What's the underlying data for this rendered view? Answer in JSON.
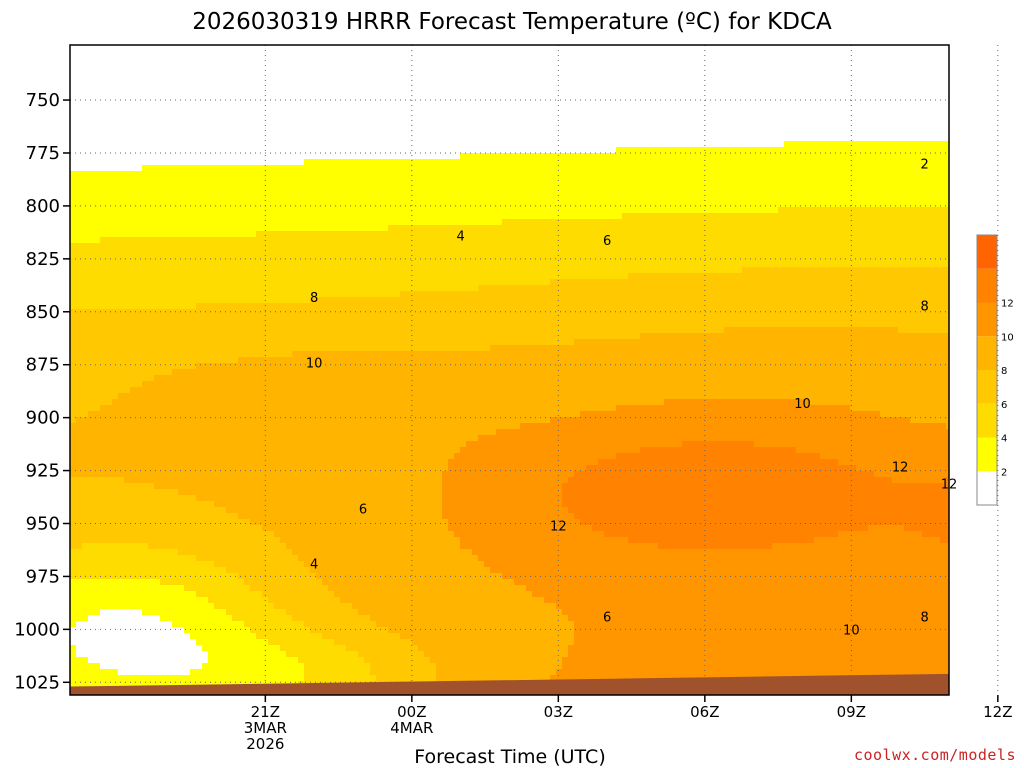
{
  "chart_data": {
    "type": "heatmap",
    "title": "2026030319 HRRR Forecast Temperature (ºC) for KDCA",
    "xlabel": "Forecast Time (UTC)",
    "ylabel": "",
    "x_range_hours": [
      -4,
      14
    ],
    "y_range_hpa": [
      1031,
      724
    ],
    "y_scale": "inverted pressure",
    "x_ticks": [
      {
        "hour": 0,
        "line1": "21Z",
        "line2": "3MAR",
        "line3": "2026"
      },
      {
        "hour": 3,
        "line1": "00Z",
        "line2": "4MAR",
        "line3": ""
      },
      {
        "hour": 6,
        "line1": "03Z",
        "line2": "",
        "line3": ""
      },
      {
        "hour": 9,
        "line1": "06Z",
        "line2": "",
        "line3": ""
      },
      {
        "hour": 12,
        "line1": "09Z",
        "line2": "",
        "line3": ""
      },
      {
        "hour": 15,
        "line1": "12Z",
        "line2": "",
        "line3": ""
      }
    ],
    "y_ticks": [
      "750",
      "775",
      "800",
      "825",
      "850",
      "875",
      "900",
      "925",
      "950",
      "975",
      "1000",
      "1025"
    ],
    "y_tick_values": [
      750,
      775,
      800,
      825,
      850,
      875,
      900,
      925,
      950,
      975,
      1000,
      1025
    ],
    "grid": true,
    "legend": {
      "placement": "right",
      "labels": [
        "2",
        "4",
        "6",
        "8",
        "10",
        "12"
      ],
      "levels": [
        2,
        4,
        6,
        8,
        10,
        12,
        14
      ],
      "colors": [
        "#ffffff",
        "#ffff00",
        "#ffdc00",
        "#ffc800",
        "#ffb400",
        "#ff9600",
        "#ff8200",
        "#ff6400"
      ]
    },
    "contour_labels": [
      {
        "text": "2",
        "hour": 13.5,
        "hpa": 780
      },
      {
        "text": "4",
        "hour": 4.0,
        "hpa": 814
      },
      {
        "text": "6",
        "hour": 7.0,
        "hpa": 816
      },
      {
        "text": "8",
        "hour": 1.0,
        "hpa": 843
      },
      {
        "text": "8",
        "hour": 13.5,
        "hpa": 847
      },
      {
        "text": "10",
        "hour": 1.0,
        "hpa": 874
      },
      {
        "text": "10",
        "hour": 11.0,
        "hpa": 893
      },
      {
        "text": "12",
        "hour": 13.0,
        "hpa": 923
      },
      {
        "text": "12",
        "hour": 14.0,
        "hpa": 931
      },
      {
        "text": "12",
        "hour": 6.0,
        "hpa": 951
      },
      {
        "text": "6",
        "hour": 2.0,
        "hpa": 943
      },
      {
        "text": "4",
        "hour": 1.0,
        "hpa": 969
      },
      {
        "text": "6",
        "hour": 7.0,
        "hpa": 994
      },
      {
        "text": "8",
        "hour": 13.5,
        "hpa": 994
      },
      {
        "text": "10",
        "hour": 12.0,
        "hpa": 1000
      }
    ],
    "ground": {
      "color": "#a0522d",
      "surface_hpa_left": 1027,
      "surface_hpa_right": 1021
    }
  },
  "footer": {
    "credit": "coolwx.com/models"
  }
}
